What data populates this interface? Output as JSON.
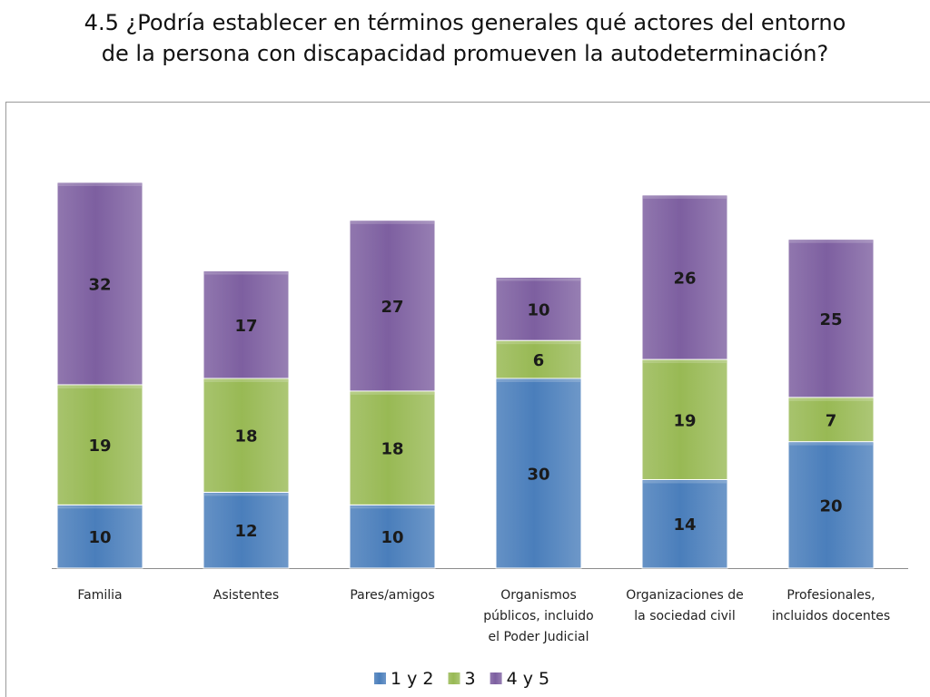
{
  "title_lines": [
    "4.5  ¿Podría establecer en términos generales qué actores del entorno",
    "de la persona con discapacidad promueven la autodeterminación?"
  ],
  "chart_data": {
    "type": "bar",
    "stacked": true,
    "categories": [
      [
        "Familia"
      ],
      [
        "Asistentes"
      ],
      [
        "Pares/amigos"
      ],
      [
        "Organismos",
        "públicos, incluido",
        "el Poder Judicial"
      ],
      [
        "Organizaciones de",
        "la sociedad civil"
      ],
      [
        "Profesionales,",
        "incluidos docentes"
      ]
    ],
    "series": [
      {
        "name": "1 y 2",
        "color": "#4a7ebb",
        "values": [
          10,
          12,
          10,
          30,
          14,
          20
        ]
      },
      {
        "name": "3",
        "color": "#98b954",
        "values": [
          19,
          18,
          18,
          6,
          19,
          7
        ]
      },
      {
        "name": "4 y 5",
        "color": "#7d5fa0",
        "values": [
          32,
          17,
          27,
          10,
          26,
          25
        ]
      }
    ],
    "ylim": [
      0,
      61
    ],
    "grid": false,
    "legend_position": "bottom"
  }
}
